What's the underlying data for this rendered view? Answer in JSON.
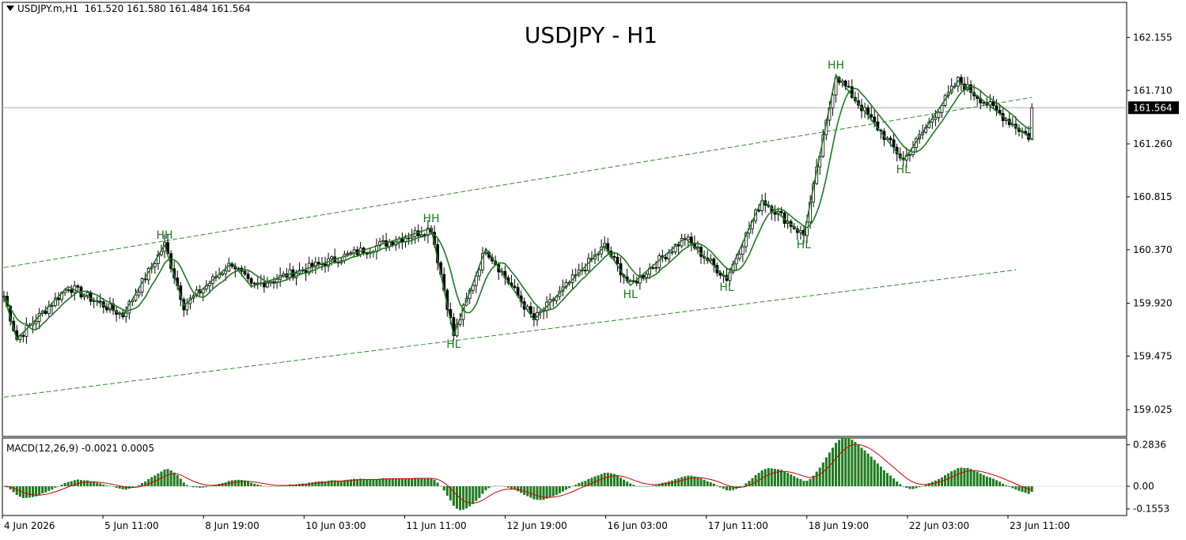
{
  "header": {
    "symbol": "USDJPY.m,H1",
    "ohlc": "161.520 161.580 161.484 161.564"
  },
  "chart_title": "USDJPY - H1",
  "current_price_label": "161.564",
  "macd": {
    "label": "MACD(12,26,9) -0.0021 0.0005",
    "axis_labels": [
      "0.2836",
      "0.00",
      "-0.1553"
    ]
  },
  "colors": {
    "up_candle": "#ffffff",
    "down_candle": "#000000",
    "zigzag_and_ma": "#1e7a1e",
    "channel": "#2e8b2e",
    "macd_histogram": "#1e7a1e",
    "macd_signal": "#cc0000",
    "price_line": "#b0b0b0",
    "label_hh_hl": "#1e7a1e"
  },
  "chart_data": {
    "type": "candlestick",
    "title": "USDJPY - H1",
    "y_ticks": [
      "162.155",
      "161.710",
      "161.260",
      "160.815",
      "160.370",
      "159.920",
      "159.475",
      "159.025"
    ],
    "x_ticks": [
      "4 Jun 2026",
      "5 Jun 11:00",
      "8 Jun 19:00",
      "10 Jun 03:00",
      "11 Jun 11:00",
      "12 Jun 19:00",
      "16 Jun 03:00",
      "17 Jun 11:00",
      "18 Jun 19:00",
      "22 Jun 03:00",
      "23 Jun 11:00"
    ],
    "ylim": [
      158.8,
      162.45
    ],
    "current_price": 161.564,
    "zigzag": [
      {
        "x": 0,
        "y": 159.98
      },
      {
        "x": 4,
        "y": 159.62
      },
      {
        "x": 20,
        "y": 160.06
      },
      {
        "x": 37,
        "y": 159.82
      },
      {
        "x": 50,
        "y": 160.41,
        "label": "HH"
      },
      {
        "x": 56,
        "y": 159.9
      },
      {
        "x": 71,
        "y": 160.26
      },
      {
        "x": 77,
        "y": 160.06
      },
      {
        "x": 133,
        "y": 160.55,
        "label": "HH"
      },
      {
        "x": 140,
        "y": 159.65,
        "label": "HL"
      },
      {
        "x": 150,
        "y": 160.38
      },
      {
        "x": 165,
        "y": 159.78
      },
      {
        "x": 187,
        "y": 160.4
      },
      {
        "x": 195,
        "y": 160.07,
        "label": "HL"
      },
      {
        "x": 212,
        "y": 160.47
      },
      {
        "x": 225,
        "y": 160.13,
        "label": "HL"
      },
      {
        "x": 236,
        "y": 160.79
      },
      {
        "x": 249,
        "y": 160.49,
        "label": "HL"
      },
      {
        "x": 259,
        "y": 161.84,
        "label": "HH"
      },
      {
        "x": 280,
        "y": 161.12,
        "label": "HL"
      },
      {
        "x": 297,
        "y": 161.79
      },
      {
        "x": 320,
        "y": 161.3
      }
    ],
    "channel_upper": [
      {
        "x": 0,
        "y": 160.22
      },
      {
        "x": 320,
        "y": 161.65
      }
    ],
    "channel_lower": [
      {
        "x": 0,
        "y": 159.13
      },
      {
        "x": 315,
        "y": 160.2
      }
    ],
    "macd_ylim": [
      -0.2,
      0.33
    ]
  }
}
